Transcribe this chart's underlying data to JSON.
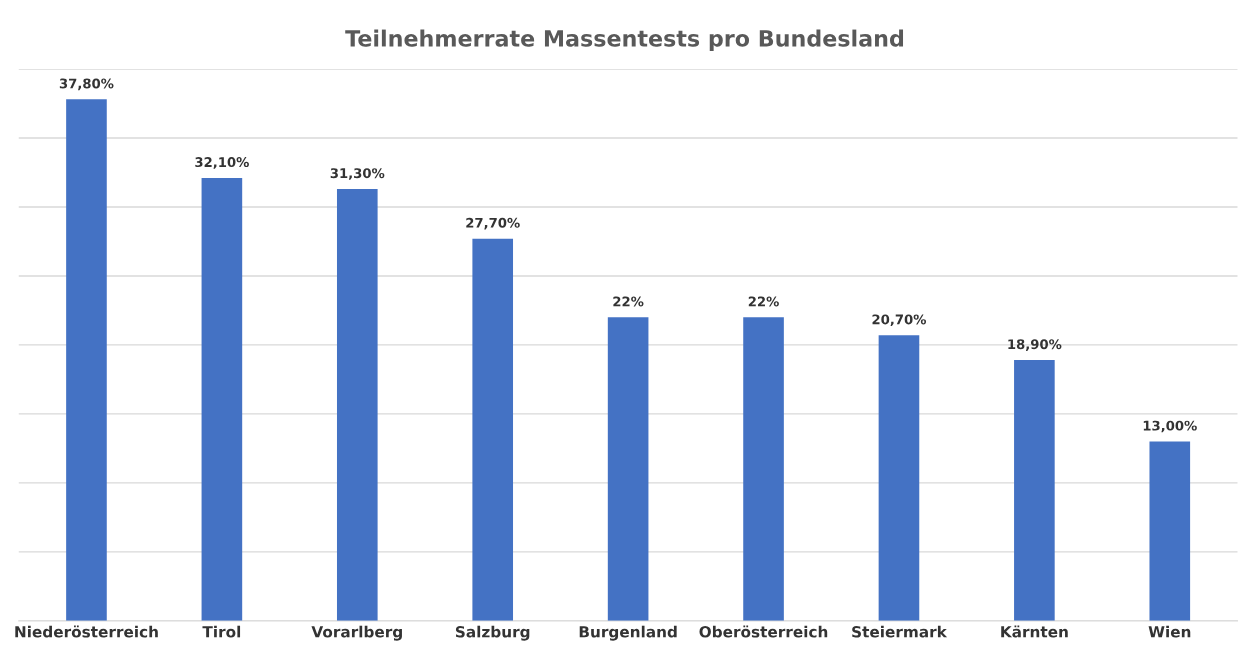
{
  "chart_data": {
    "type": "bar",
    "title": "Teilnehmerrate Massentests pro Bundesland",
    "categories": [
      "Niederösterreich",
      "Tirol",
      "Vorarlberg",
      "Salzburg",
      "Burgenland",
      "Oberösterreich",
      "Steiermark",
      "Kärnten",
      "Wien"
    ],
    "values": [
      37.8,
      32.1,
      31.3,
      27.7,
      22,
      22,
      20.7,
      18.9,
      13.0
    ],
    "value_labels": [
      "37,80%",
      "32,10%",
      "31,30%",
      "27,70%",
      "22%",
      "22%",
      "20,70%",
      "18,90%",
      "13,00%"
    ],
    "color": "#4472c4",
    "ylim": [
      0,
      40
    ],
    "yticks": [
      {
        "value": 0,
        "label": null
      },
      {
        "value": 5,
        "label": null
      },
      {
        "value": 10,
        "label": null
      },
      {
        "value": 15,
        "label": null
      },
      {
        "value": 20,
        "label": null
      },
      {
        "value": 25,
        "label": null
      },
      {
        "value": 30,
        "label": null
      },
      {
        "value": 35,
        "label": null
      },
      {
        "value": 40,
        "label": null
      }
    ],
    "tick_labels": "x",
    "grid": "y"
  }
}
